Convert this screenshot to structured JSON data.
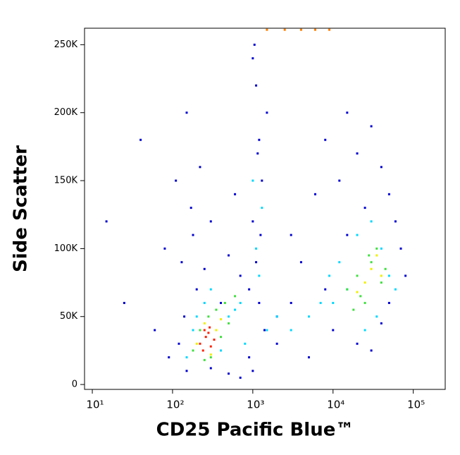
{
  "chart_data": {
    "type": "scatter",
    "xlabel": "CD25 Pacific Blue™",
    "ylabel": "Side Scatter",
    "xscale": "log",
    "xlim": [
      8,
      250000
    ],
    "xticks": [
      {
        "value": 10,
        "label": "10¹"
      },
      {
        "value": 100,
        "label": "10²"
      },
      {
        "value": 1000,
        "label": "10³"
      },
      {
        "value": 10000,
        "label": "10⁴"
      },
      {
        "value": 100000,
        "label": "10⁵"
      }
    ],
    "ylim": [
      -3600,
      262144
    ],
    "yticks": [
      0,
      {
        "value": 50000,
        "label": "50K"
      },
      {
        "value": 100000,
        "label": "100K"
      },
      {
        "value": 150000,
        "label": "150K"
      },
      {
        "value": 200000,
        "label": "200K"
      },
      {
        "value": 250000,
        "label": "250K"
      }
    ],
    "grid": false,
    "series": [
      {
        "color": "#0000d0",
        "x": [
          15,
          25,
          40,
          60,
          80,
          110,
          130,
          150,
          170,
          200,
          120,
          140,
          180,
          220,
          250,
          300,
          400,
          500,
          600,
          700,
          900,
          1000,
          1100,
          1200,
          1300,
          1000,
          1100,
          1200,
          1400,
          1500,
          1050,
          1150,
          1250,
          900,
          1000,
          2000,
          3000,
          4000,
          5000,
          6000,
          8000,
          10000,
          12000,
          15000,
          20000,
          25000,
          30000,
          40000,
          50000,
          60000,
          70000,
          80000,
          20000,
          30000,
          40000,
          15000,
          50000,
          8000,
          3000,
          2000,
          700,
          500,
          300,
          150,
          90
        ],
        "values": [
          120000,
          60000,
          180000,
          40000,
          100000,
          150000,
          90000,
          200000,
          130000,
          70000,
          30000,
          50000,
          110000,
          160000,
          85000,
          120000,
          60000,
          95000,
          140000,
          80000,
          20000,
          240000,
          220000,
          180000,
          150000,
          120000,
          90000,
          60000,
          40000,
          200000,
          250000,
          170000,
          110000,
          70000,
          10000,
          30000,
          60000,
          90000,
          20000,
          140000,
          180000,
          40000,
          150000,
          200000,
          170000,
          130000,
          190000,
          160000,
          140000,
          120000,
          100000,
          80000,
          30000,
          25000,
          45000,
          110000,
          60000,
          70000,
          110000,
          50000,
          5000,
          8000,
          12000,
          10000,
          20000
        ]
      },
      {
        "color": "#00d8ff",
        "x": [
          150,
          200,
          250,
          180,
          300,
          500,
          600,
          700,
          800,
          400,
          10000,
          15000,
          20000,
          30000,
          40000,
          50000,
          12000,
          25000,
          35000,
          60000,
          1200,
          1500,
          2000,
          3000,
          5000,
          1000,
          1100,
          1300,
          7000,
          9000
        ],
        "values": [
          20000,
          50000,
          60000,
          40000,
          70000,
          50000,
          55000,
          60000,
          30000,
          25000,
          60000,
          70000,
          110000,
          120000,
          100000,
          80000,
          90000,
          40000,
          50000,
          70000,
          80000,
          40000,
          50000,
          40000,
          50000,
          150000,
          100000,
          130000,
          60000,
          80000
        ]
      },
      {
        "color": "#40e040",
        "x": [
          180,
          220,
          280,
          350,
          450,
          500,
          600,
          300,
          250,
          400,
          15000,
          20000,
          25000,
          30000,
          40000,
          18000,
          35000,
          45000,
          22000,
          28000
        ],
        "values": [
          25000,
          40000,
          50000,
          55000,
          60000,
          45000,
          65000,
          20000,
          18000,
          35000,
          70000,
          80000,
          60000,
          90000,
          75000,
          55000,
          100000,
          85000,
          65000,
          95000
        ]
      },
      {
        "color": "#f0f000",
        "x": [
          200,
          250,
          350,
          400,
          300,
          25000,
          30000,
          35000,
          20000,
          40000
        ],
        "values": [
          30000,
          45000,
          40000,
          48000,
          22000,
          75000,
          85000,
          95000,
          68000,
          80000
        ]
      },
      {
        "color": "#ff2000",
        "x": [
          220,
          260,
          300,
          250,
          280,
          330,
          240,
          290
        ],
        "values": [
          30000,
          35000,
          28000,
          40000,
          38000,
          33000,
          25000,
          42000
        ]
      },
      {
        "color": "#ff8000",
        "x": [
          1500,
          2500,
          4000,
          6000,
          9000
        ],
        "values": [
          261000,
          261000,
          261000,
          261000,
          261000
        ]
      }
    ]
  }
}
